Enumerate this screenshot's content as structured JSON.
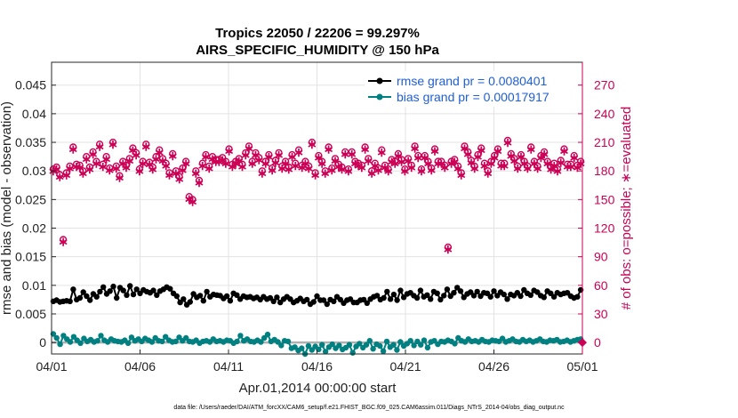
{
  "chart_data": {
    "type": "line",
    "title": "Tropics 22050 / 22206 = 99.297%",
    "subtitle": "AIRS_SPECIFIC_HUMIDITY @ 150 hPa",
    "xlabel": "Apr.01,2014 00:00:00 start",
    "ylabel_left": "rmse and bias (model - observation)",
    "ylabel_right": "# of obs: o=possible; ∗=evaluated",
    "x_ticks": [
      "04/01",
      "04/06",
      "04/11",
      "04/16",
      "04/21",
      "04/26",
      "05/01"
    ],
    "x_range_days": [
      0,
      30
    ],
    "y_left_ticks": [
      "0",
      "0.005",
      "0.01",
      "0.015",
      "0.02",
      "0.025",
      "0.03",
      "0.035",
      "0.04",
      "0.045"
    ],
    "y_left_lim": [
      -0.002,
      0.049
    ],
    "y_right_ticks": [
      "0",
      "30",
      "60",
      "90",
      "120",
      "150",
      "180",
      "210",
      "240",
      "270"
    ],
    "y_right_lim": [
      -12,
      294
    ],
    "grid": true,
    "legend_position": "top-right",
    "series": [
      {
        "name": "rmse grand pr = 0.0080401",
        "axis": "left",
        "color": "#000000",
        "marker": "o-",
        "values": [
          0.0072,
          0.0074,
          0.0071,
          0.0072,
          0.0073,
          0.0072,
          0.0093,
          0.0075,
          0.0078,
          0.0088,
          0.0081,
          0.0074,
          0.0085,
          0.008,
          0.0089,
          0.0097,
          0.0085,
          0.009,
          0.0098,
          0.0078,
          0.0096,
          0.0091,
          0.0083,
          0.0099,
          0.0084,
          0.0093,
          0.0086,
          0.0092,
          0.0089,
          0.0087,
          0.0091,
          0.0083,
          0.009,
          0.0093,
          0.0097,
          0.0094,
          0.0086,
          0.0081,
          0.007,
          0.0076,
          0.0066,
          0.0071,
          0.0085,
          0.0079,
          0.0082,
          0.0073,
          0.0089,
          0.008,
          0.0084,
          0.0083,
          0.0082,
          0.0077,
          0.0081,
          0.0073,
          0.0086,
          0.0083,
          0.0076,
          0.0081,
          0.0079,
          0.008,
          0.0077,
          0.0079,
          0.0075,
          0.008,
          0.0076,
          0.0078,
          0.0072,
          0.0079,
          0.007,
          0.0076,
          0.008,
          0.0076,
          0.007,
          0.0073,
          0.0077,
          0.0072,
          0.0075,
          0.0067,
          0.0071,
          0.0081,
          0.0074,
          0.0074,
          0.0067,
          0.0075,
          0.0072,
          0.008,
          0.0075,
          0.0069,
          0.0074,
          0.0076,
          0.007,
          0.007,
          0.0074,
          0.0075,
          0.0069,
          0.0076,
          0.008,
          0.0082,
          0.0075,
          0.0078,
          0.0089,
          0.0076,
          0.0084,
          0.0074,
          0.0091,
          0.0079,
          0.0085,
          0.0087,
          0.0082,
          0.0078,
          0.0091,
          0.008,
          0.0083,
          0.0076,
          0.0089,
          0.0086,
          0.0075,
          0.0082,
          0.0093,
          0.0081,
          0.0087,
          0.0096,
          0.009,
          0.0079,
          0.0085,
          0.0088,
          0.0082,
          0.0089,
          0.0081,
          0.0087,
          0.0086,
          0.008,
          0.009,
          0.0082,
          0.0088,
          0.0084,
          0.0076,
          0.0084,
          0.0082,
          0.0087,
          0.0081,
          0.0092,
          0.0086,
          0.0083,
          0.0091,
          0.0088,
          0.0082,
          0.0079,
          0.009,
          0.0086,
          0.008,
          0.0087,
          0.0084,
          0.0086,
          0.0087,
          0.0081,
          0.0078,
          0.008,
          0.0092
        ]
      },
      {
        "name": "bias grand pr = 0.00017917",
        "axis": "left",
        "color": "#008080",
        "marker": "o-",
        "values": [
          0.0015,
          0.0008,
          -0.0003,
          0.0012,
          0.0006,
          0.0001,
          0.001,
          0.0004,
          -0.0001,
          0.0007,
          0.0002,
          0.0005,
          0.0001,
          0.0003,
          0.0012,
          0.0004,
          0.0001,
          0.0006,
          0.0003,
          0.0002,
          0.0001,
          0.0004,
          -0.0001,
          0.0009,
          0.0003,
          0.0006,
          0.0002,
          0.0007,
          0.0004,
          0.0001,
          0.0008,
          0.0003,
          0.0002,
          0.001,
          0.0004,
          0.0001,
          0.0002,
          0.0009,
          0.0003,
          0.0008,
          0.0002,
          0.0001,
          0.0004,
          -0.0001,
          0.0002,
          0.0003,
          0.0001,
          0.0006,
          0.0002,
          0.0003,
          0.0001,
          0.0004,
          0.0003,
          -0.0001,
          0.0002,
          0.0012,
          0.0003,
          0.0006,
          0.0002,
          0.0001,
          0.0004,
          0.0001,
          0.0008,
          0.0014,
          0.0002,
          0.0005,
          0.0001,
          -0.0005,
          0.0003,
          0.0002,
          -0.001,
          -0.0008,
          -0.0014,
          -0.001,
          -0.002,
          -0.0006,
          -0.0013,
          -0.0007,
          -0.0012,
          -0.0004,
          -0.0016,
          -0.0008,
          -0.0003,
          -0.001,
          -0.0005,
          -0.0012,
          -0.0009,
          -0.0004,
          -0.0018,
          -0.0007,
          -0.0002,
          -0.0009,
          -0.0004,
          0.0003,
          -0.0011,
          -0.0003,
          -0.0006,
          -0.0015,
          0.0002,
          -0.0008,
          -0.0004,
          -0.0013,
          0.0001,
          -0.0006,
          -0.0002,
          0.0003,
          -0.0005,
          0.0002,
          -0.0004,
          0.0004,
          -0.0009,
          0.0001,
          0.0003,
          -0.0003,
          0.0002,
          0.0001,
          0.0004,
          0.0002,
          -0.0002,
          0.0008,
          0.0003,
          0.0001,
          0.0006,
          0.0002,
          0.0003,
          0.0001,
          0.0005,
          0.0002,
          0.0001,
          0.0004,
          0.0003,
          0.0002,
          0.0007,
          0.0001,
          0.0003,
          0.0006,
          0.0002,
          0.0001,
          0.0005,
          0.0002,
          0.0004,
          0.0001,
          0.0003,
          0.0006,
          0.0002,
          0.0001,
          0.0004,
          0.0003,
          0.0005,
          0.0001,
          0.0002,
          0.0004,
          0.0001,
          0.0003,
          0.0005,
          0.0006
        ]
      },
      {
        "name": "possible",
        "axis": "right",
        "color": "#cc0055",
        "marker": "o",
        "values": [
          182,
          184,
          176,
          108,
          178,
          185,
          205,
          187,
          186,
          180,
          195,
          184,
          200,
          190,
          208,
          187,
          195,
          183,
          210,
          185,
          175,
          190,
          186,
          193,
          204,
          199,
          182,
          190,
          208,
          189,
          184,
          195,
          202,
          193,
          188,
          178,
          198,
          180,
          174,
          183,
          190,
          153,
          150,
          180,
          170,
          188,
          197,
          185,
          195,
          192,
          192,
          194,
          190,
          203,
          187,
          190,
          193,
          187,
          199,
          206,
          190,
          199,
          194,
          180,
          190,
          197,
          183,
          191,
          199,
          185,
          190,
          184,
          197,
          188,
          202,
          186,
          190,
          185,
          210,
          178,
          196,
          190,
          180,
          205,
          183,
          193,
          187,
          184,
          200,
          182,
          200,
          190,
          188,
          186,
          205,
          193,
          180,
          188,
          183,
          202,
          186,
          182,
          192,
          190,
          198,
          192,
          182,
          193,
          186,
          206,
          196,
          182,
          196,
          190,
          183,
          203,
          190,
          190,
          186,
          100,
          190,
          192,
          185,
          178,
          206,
          200,
          191,
          185,
          197,
          204,
          188,
          180,
          190,
          196,
          203,
          188,
          188,
          212,
          198,
          193,
          185,
          197,
          190,
          185,
          205,
          190,
          185,
          196,
          200,
          190,
          184,
          188,
          182,
          191,
          203,
          187,
          187,
          196,
          186,
          190
        ]
      },
      {
        "name": "evaluated",
        "axis": "right",
        "color": "#cc0055",
        "marker": "*",
        "values": [
          180,
          182,
          174,
          106,
          176,
          183,
          203,
          185,
          184,
          178,
          193,
          182,
          198,
          188,
          206,
          185,
          193,
          181,
          208,
          183,
          173,
          188,
          184,
          191,
          202,
          197,
          180,
          188,
          206,
          187,
          182,
          193,
          200,
          191,
          186,
          176,
          196,
          178,
          172,
          181,
          188,
          151,
          148,
          178,
          168,
          186,
          195,
          183,
          193,
          190,
          190,
          192,
          188,
          201,
          185,
          188,
          191,
          185,
          197,
          204,
          188,
          197,
          192,
          178,
          188,
          195,
          181,
          189,
          197,
          183,
          188,
          182,
          195,
          186,
          200,
          184,
          188,
          183,
          208,
          176,
          194,
          188,
          178,
          203,
          181,
          191,
          185,
          182,
          198,
          180,
          198,
          188,
          186,
          184,
          203,
          191,
          178,
          186,
          181,
          200,
          184,
          180,
          190,
          188,
          196,
          190,
          180,
          191,
          184,
          204,
          194,
          180,
          194,
          188,
          181,
          201,
          188,
          188,
          184,
          98,
          188,
          190,
          183,
          176,
          204,
          198,
          189,
          183,
          195,
          202,
          186,
          178,
          188,
          194,
          201,
          186,
          186,
          210,
          196,
          191,
          183,
          195,
          188,
          183,
          203,
          188,
          183,
          194,
          198,
          188,
          182,
          186,
          180,
          189,
          201,
          185,
          185,
          194,
          184,
          188
        ]
      }
    ],
    "footnote": "data file: /Users/raeder/DAI/ATM_forcXX/CAM6_setup/f.e21.FHIST_BGC.f09_025.CAM6assim.011/Diags_NTrS_2014-04/obs_diag_output.nc"
  }
}
